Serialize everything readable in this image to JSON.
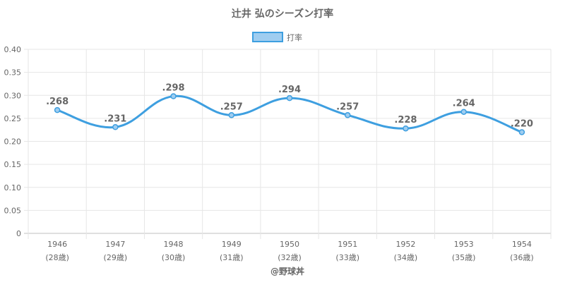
{
  "chart_data": {
    "type": "line",
    "title": "辻井 弘のシーズン打率",
    "categories": [
      [
        "1946",
        "(28歳)"
      ],
      [
        "1947",
        "(29歳)"
      ],
      [
        "1948",
        "(30歳)"
      ],
      [
        "1949",
        "(31歳)"
      ],
      [
        "1950",
        "(32歳)"
      ],
      [
        "1951",
        "(33歳)"
      ],
      [
        "1952",
        "(34歳)"
      ],
      [
        "1953",
        "(35歳)"
      ],
      [
        "1954",
        "(36歳)"
      ]
    ],
    "series": [
      {
        "name": "打率",
        "values": [
          0.268,
          0.231,
          0.298,
          0.257,
          0.294,
          0.257,
          0.228,
          0.264,
          0.22
        ],
        "labels": [
          ".268",
          ".231",
          ".298",
          ".257",
          ".294",
          ".257",
          ".228",
          ".264",
          ".220"
        ],
        "color": "#3e9fe0",
        "fill_color": "#9fcdf0"
      }
    ],
    "ylim": [
      0,
      0.4
    ],
    "yticks": [
      0,
      0.05,
      0.1,
      0.15,
      0.2,
      0.25,
      0.3,
      0.35,
      0.4
    ],
    "ytick_labels": [
      "0",
      "0.05",
      "0.10",
      "0.15",
      "0.20",
      "0.25",
      "0.30",
      "0.35",
      "0.40"
    ],
    "grid": true,
    "legend_position": "top-center",
    "credit": "@野球丼",
    "xlabel": "",
    "ylabel": ""
  }
}
